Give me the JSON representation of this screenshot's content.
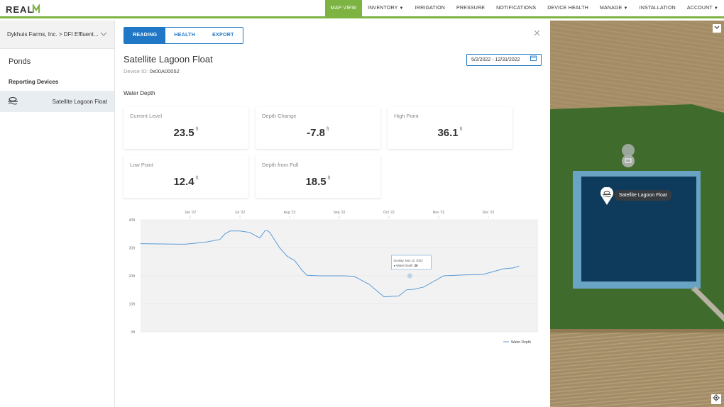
{
  "app": {
    "logo": "REALM"
  },
  "nav": [
    {
      "label": "MAP VIEW",
      "active": true,
      "caret": false
    },
    {
      "label": "INVENTORY",
      "caret": true
    },
    {
      "label": "IRRIGATION",
      "caret": false
    },
    {
      "label": "PRESSURE",
      "caret": false
    },
    {
      "label": "NOTIFICATIONS",
      "caret": false
    },
    {
      "label": "DEVICE HEALTH",
      "caret": false
    },
    {
      "label": "MANAGE",
      "caret": true
    },
    {
      "label": "INSTALLATION",
      "caret": false
    },
    {
      "label": "ACCOUNT",
      "caret": true
    }
  ],
  "sidebar": {
    "crumb": "Dykhuis Farms, Inc. > DFI Effluent...",
    "section_title": "Ponds",
    "subsection": "Reporting Devices",
    "device_label": "Satellite Lagoon Float"
  },
  "panel": {
    "tabs": [
      "READING",
      "HEALTH",
      "EXPORT"
    ],
    "active_tab": "READING",
    "title": "Satellite Lagoon Float",
    "device_id_label": "Device ID:",
    "device_id": "0x00A00052",
    "date_range": "5/2/2022 - 12/31/2022",
    "section": "Water Depth",
    "cards": [
      {
        "label": "Current Level",
        "value": "23.5",
        "unit": "ft"
      },
      {
        "label": "Depth Change",
        "value": "-7.8",
        "unit": "ft"
      },
      {
        "label": "High Point",
        "value": "36.1",
        "unit": "ft"
      },
      {
        "label": "Low Point",
        "value": "12.4",
        "unit": "ft"
      },
      {
        "label": "Depth from Full",
        "value": "18.5",
        "unit": "ft"
      }
    ]
  },
  "chart_data": {
    "type": "line",
    "x_tick_labels": [
      "Jun '22",
      "Jul '22",
      "Aug '22",
      "Sep '22",
      "Oct '22",
      "Nov '22",
      "Dec '22"
    ],
    "y_tick_labels": [
      "40ft",
      "30ft",
      "20ft",
      "10ft",
      "0ft"
    ],
    "ylim": [
      0,
      40
    ],
    "series": [
      {
        "name": "Water Depth",
        "color": "#5b9bd5",
        "x_month_pos": [
          0,
          0.4,
          0.9,
          1.3,
          1.6,
          1.7,
          1.8,
          2.0,
          2.2,
          2.4,
          2.5,
          2.55,
          2.6,
          2.8,
          2.95,
          3.1,
          3.25,
          3.35,
          3.6,
          3.8,
          4.1,
          4.3,
          4.6,
          4.9,
          5.2,
          5.35,
          5.5,
          5.7,
          6.1,
          6.5,
          6.9,
          7.3,
          7.5,
          7.62
        ],
        "values": [
          31.5,
          31.4,
          31.3,
          32,
          33,
          35,
          36,
          36,
          35.5,
          33.5,
          36,
          36.2,
          35.5,
          30,
          27,
          25.5,
          22,
          20.2,
          20,
          20,
          20,
          19.8,
          17,
          12.5,
          12.8,
          15,
          15.2,
          16,
          20,
          20.3,
          20.5,
          22.5,
          22.8,
          23.5
        ]
      }
    ],
    "tooltip": {
      "line1": "Sunday, Nov 13, 2022",
      "line2_label": "Water Depth:",
      "line2_value": "20"
    },
    "legend": "Water Depth",
    "legend_position": "bottom-right",
    "grid": true
  },
  "map": {
    "label": "Satellite Lagoon Float",
    "colors": {
      "field": "#a8916a",
      "pond": "#0e3a5c",
      "grass": "#3f6b2c"
    }
  }
}
